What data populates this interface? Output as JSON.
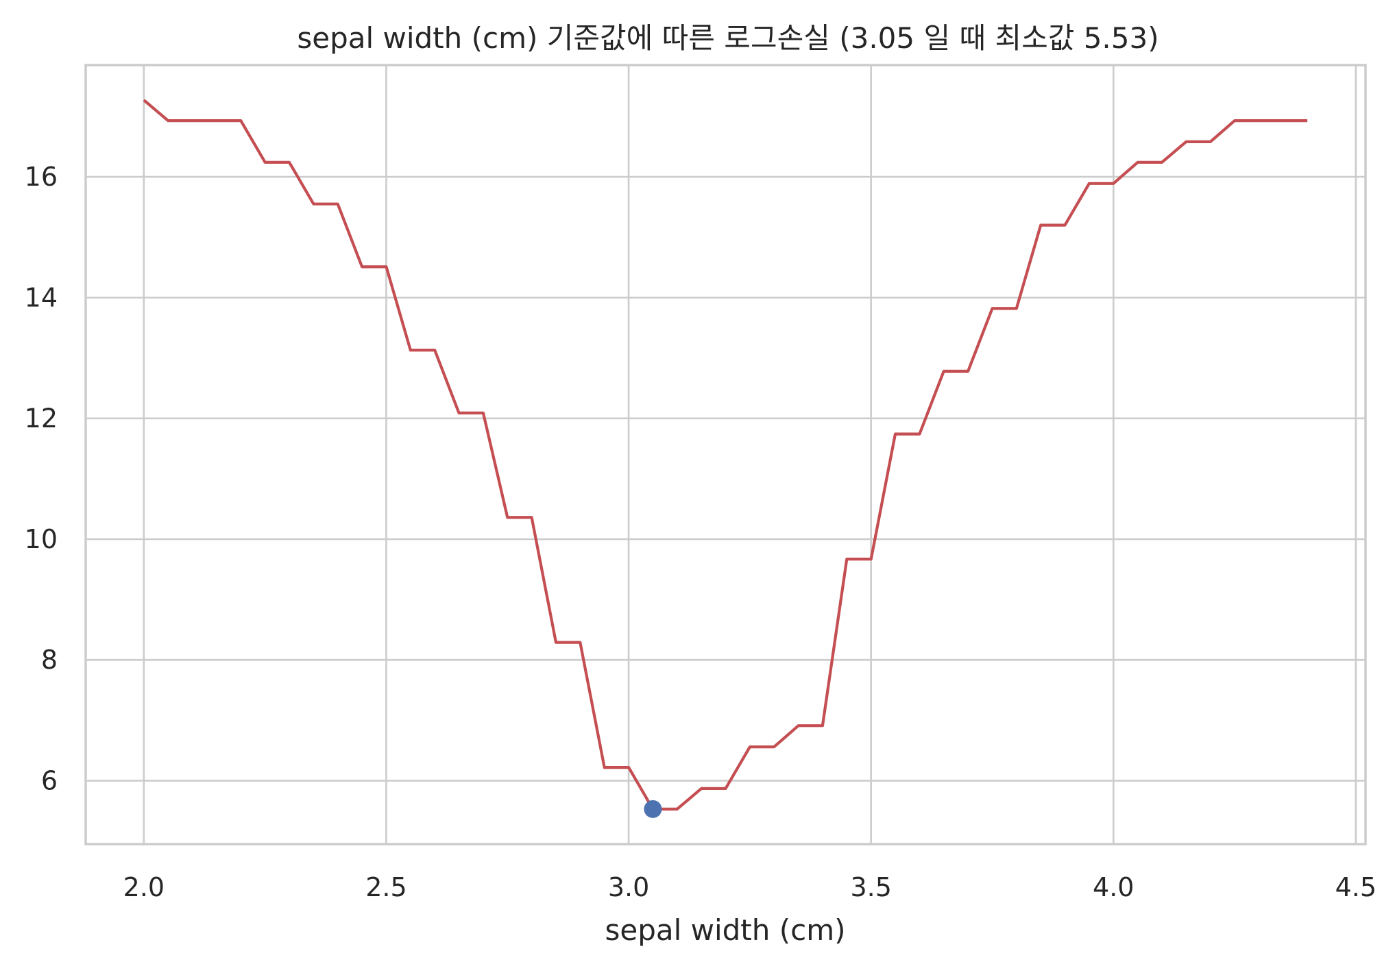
{
  "chart_data": {
    "type": "line",
    "title": "sepal width (cm) 기준값에 따른 로그손실 (3.05 일 때 최소값 5.53)",
    "xlabel": "sepal width (cm)",
    "ylabel": "",
    "xlim": [
      1.88,
      4.52
    ],
    "ylim": [
      4.95,
      17.85
    ],
    "xticks": [
      2.0,
      2.5,
      3.0,
      3.5,
      4.0,
      4.5
    ],
    "xtick_labels": [
      "2.0",
      "2.5",
      "3.0",
      "3.5",
      "4.0",
      "4.5"
    ],
    "yticks": [
      6,
      8,
      10,
      12,
      14,
      16
    ],
    "ytick_labels": [
      "6",
      "8",
      "10",
      "12",
      "14",
      "16"
    ],
    "grid": true,
    "series": [
      {
        "color": "#c44e52",
        "x": [
          2.0,
          2.05,
          2.1,
          2.15,
          2.2,
          2.25,
          2.3,
          2.35,
          2.4,
          2.45,
          2.5,
          2.55,
          2.6,
          2.65,
          2.7,
          2.75,
          2.8,
          2.85,
          2.9,
          2.95,
          3.0,
          3.05,
          3.1,
          3.15,
          3.2,
          3.25,
          3.3,
          3.35,
          3.4,
          3.45,
          3.5,
          3.55,
          3.6,
          3.65,
          3.7,
          3.75,
          3.8,
          3.85,
          3.9,
          3.95,
          4.0,
          4.05,
          4.1,
          4.15,
          4.2,
          4.25,
          4.3,
          4.35,
          4.4
        ],
        "y": [
          17.27,
          16.93,
          16.93,
          16.93,
          16.93,
          16.24,
          16.24,
          15.55,
          15.55,
          14.51,
          14.51,
          13.13,
          13.13,
          12.09,
          12.09,
          10.36,
          10.36,
          8.29,
          8.29,
          6.22,
          6.22,
          5.53,
          5.53,
          5.87,
          5.87,
          6.56,
          6.56,
          6.91,
          6.91,
          9.67,
          9.67,
          11.74,
          11.74,
          12.78,
          12.78,
          13.82,
          13.82,
          15.2,
          15.2,
          15.89,
          15.89,
          16.24,
          16.24,
          16.58,
          16.58,
          16.93,
          16.93,
          16.93,
          16.93
        ]
      }
    ],
    "highlight_point": {
      "x": 3.05,
      "y": 5.53,
      "color": "#4c72b0"
    }
  }
}
